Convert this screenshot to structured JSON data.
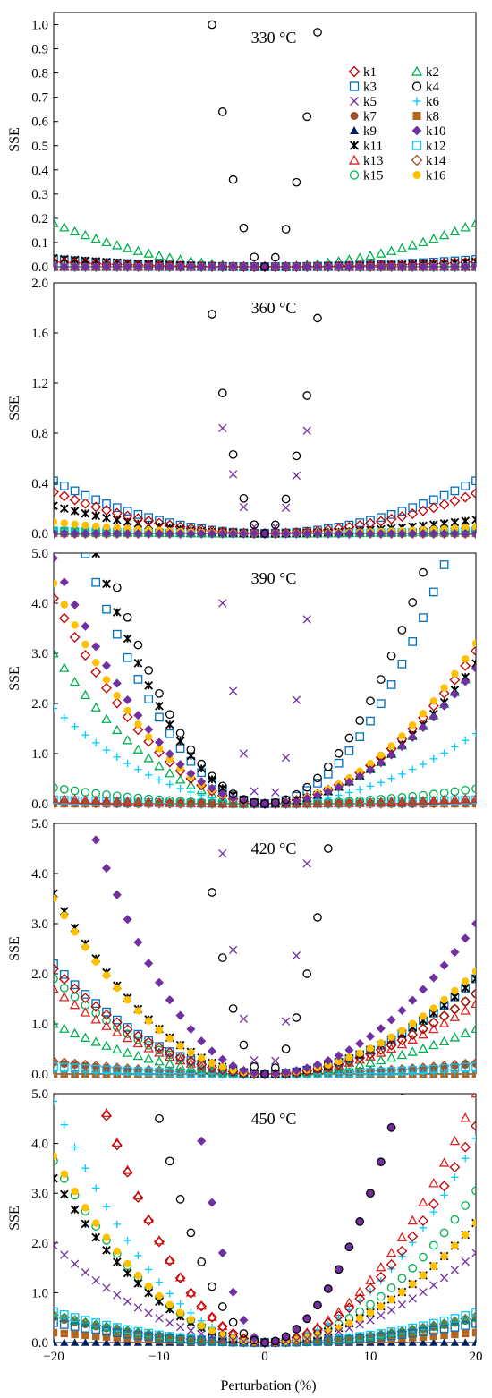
{
  "figure": {
    "xlabel": "Perturbation (%)",
    "xticks": [
      "−20",
      "−10",
      "0",
      "10",
      "20"
    ],
    "xlim": [
      -20,
      20
    ],
    "ylabel": "SSE"
  },
  "legend": {
    "placement": "top-right of first panel, two columns",
    "items": [
      {
        "key": "k1",
        "label": "k1",
        "marker": "diamond-open",
        "color": "#c00000"
      },
      {
        "key": "k2",
        "label": "k2",
        "marker": "triangle-open",
        "color": "#00b050"
      },
      {
        "key": "k3",
        "label": "k3",
        "marker": "square-open",
        "color": "#0070c0"
      },
      {
        "key": "k4",
        "label": "k4",
        "marker": "circle-open",
        "color": "#000000"
      },
      {
        "key": "k5",
        "label": "k5",
        "marker": "x",
        "color": "#7030a0"
      },
      {
        "key": "k6",
        "label": "k6",
        "marker": "plus",
        "color": "#00ccff"
      },
      {
        "key": "k7",
        "label": "k7",
        "marker": "circle-filled",
        "color": "#a0522d"
      },
      {
        "key": "k8",
        "label": "k8",
        "marker": "square-filled",
        "color": "#b5651d"
      },
      {
        "key": "k9",
        "label": "k9",
        "marker": "triangle-filled",
        "color": "#002060"
      },
      {
        "key": "k10",
        "label": "k10",
        "marker": "diamond-filled",
        "color": "#7030a0"
      },
      {
        "key": "k11",
        "label": "k11",
        "marker": "star",
        "color": "#000000"
      },
      {
        "key": "k12",
        "label": "k12",
        "marker": "square-open",
        "color": "#00ccff"
      },
      {
        "key": "k13",
        "label": "k13",
        "marker": "triangle-open",
        "color": "#e02020"
      },
      {
        "key": "k14",
        "label": "k14",
        "marker": "diamond-open",
        "color": "#a0522d"
      },
      {
        "key": "k15",
        "label": "k15",
        "marker": "circle-open",
        "color": "#00b050"
      },
      {
        "key": "k16",
        "label": "k16",
        "marker": "circle-filled",
        "color": "#ffc000"
      }
    ]
  },
  "chart_data": [
    {
      "type": "scatter",
      "title": "330 °C",
      "xlabel": "",
      "ylabel": "SSE",
      "ylim": [
        0,
        1.05
      ],
      "yticks": [
        "0.0",
        "0.1",
        "0.2",
        "0.3",
        "0.4",
        "0.5",
        "0.6",
        "0.7",
        "0.8",
        "0.9",
        "1.0"
      ],
      "ytick_values": [
        0,
        0.1,
        0.2,
        0.3,
        0.4,
        0.5,
        0.6,
        0.7,
        0.8,
        0.9,
        1.0
      ],
      "x": [
        -20,
        -19,
        -18,
        -17,
        -16,
        -15,
        -14,
        -13,
        -12,
        -11,
        -10,
        -9,
        -8,
        -7,
        -6,
        -5,
        -4,
        -3,
        -2,
        -1,
        0,
        1,
        2,
        3,
        4,
        5,
        6,
        7,
        8,
        9,
        10,
        11,
        12,
        13,
        14,
        15,
        16,
        17,
        18,
        19,
        20
      ],
      "series": [
        {
          "name": "k1",
          "a": 0.02,
          "b": 0.02,
          "exp": 2
        },
        {
          "name": "k2",
          "a": 0.18,
          "b": 0.18,
          "exp": 2
        },
        {
          "name": "k3",
          "a": 0.03,
          "b": 0.03,
          "exp": 2
        },
        {
          "name": "k4",
          "a": 16.0,
          "b": 15.5,
          "exp": 2,
          "xmin": -8,
          "xmax": 8
        },
        {
          "name": "k5",
          "a": 0.0,
          "b": 0.0,
          "exp": 2
        },
        {
          "name": "k6",
          "a": 0.01,
          "b": 0.01,
          "exp": 2
        },
        {
          "name": "k7",
          "a": 0.0,
          "b": 0.0,
          "exp": 2
        },
        {
          "name": "k8",
          "a": 0.0,
          "b": 0.0,
          "exp": 2
        },
        {
          "name": "k9",
          "a": 0.0,
          "b": 0.0,
          "exp": 2
        },
        {
          "name": "k10",
          "a": 0.0,
          "b": 0.0,
          "exp": 2
        },
        {
          "name": "k11",
          "a": 0.035,
          "b": 0.02,
          "exp": 2
        },
        {
          "name": "k12",
          "a": 0.0,
          "b": 0.0,
          "exp": 2
        },
        {
          "name": "k13",
          "a": 0.0,
          "b": 0.0,
          "exp": 2
        },
        {
          "name": "k14",
          "a": 0.0,
          "b": 0.0,
          "exp": 2
        },
        {
          "name": "k15",
          "a": 0.0,
          "b": 0.0,
          "exp": 2
        },
        {
          "name": "k16",
          "a": 0.0,
          "b": 0.0,
          "exp": 2
        }
      ]
    },
    {
      "type": "scatter",
      "title": "360 °C",
      "xlabel": "",
      "ylabel": "SSE",
      "ylim": [
        0,
        2.0
      ],
      "yticks": [
        "0.0",
        "0.4",
        "0.8",
        "1.2",
        "1.6",
        "2.0"
      ],
      "ytick_values": [
        0,
        0.4,
        0.8,
        1.2,
        1.6,
        2.0
      ],
      "x": [
        -20,
        -19,
        -18,
        -17,
        -16,
        -15,
        -14,
        -13,
        -12,
        -11,
        -10,
        -9,
        -8,
        -7,
        -6,
        -5,
        -4,
        -3,
        -2,
        -1,
        0,
        1,
        2,
        3,
        4,
        5,
        6,
        7,
        8,
        9,
        10,
        11,
        12,
        13,
        14,
        15,
        16,
        17,
        18,
        19,
        20
      ],
      "series": [
        {
          "name": "k1",
          "a": 0.33,
          "b": 0.32,
          "exp": 2
        },
        {
          "name": "k2",
          "a": 0.02,
          "b": 0.02,
          "exp": 2
        },
        {
          "name": "k3",
          "a": 0.42,
          "b": 0.42,
          "exp": 2
        },
        {
          "name": "k4",
          "a": 28.0,
          "b": 27.5,
          "exp": 2,
          "xmin": -7,
          "xmax": 7
        },
        {
          "name": "k5",
          "a": 21.0,
          "b": 20.5,
          "exp": 2,
          "xmin": -4,
          "xmax": 4
        },
        {
          "name": "k6",
          "a": 0.03,
          "b": 0.03,
          "exp": 2
        },
        {
          "name": "k7",
          "a": 0.0,
          "b": 0.0,
          "exp": 2
        },
        {
          "name": "k8",
          "a": 0.0,
          "b": 0.0,
          "exp": 2
        },
        {
          "name": "k9",
          "a": 0.0,
          "b": 0.0,
          "exp": 2
        },
        {
          "name": "k10",
          "a": 0.0,
          "b": 0.0,
          "exp": 2
        },
        {
          "name": "k11",
          "a": 0.22,
          "b": 0.11,
          "exp": 2
        },
        {
          "name": "k12",
          "a": 0.02,
          "b": 0.02,
          "exp": 2
        },
        {
          "name": "k13",
          "a": 0.02,
          "b": 0.02,
          "exp": 2
        },
        {
          "name": "k14",
          "a": 0.0,
          "b": 0.0,
          "exp": 2
        },
        {
          "name": "k15",
          "a": 0.02,
          "b": 0.02,
          "exp": 2
        },
        {
          "name": "k16",
          "a": 0.09,
          "b": 0.05,
          "exp": 2
        }
      ]
    },
    {
      "type": "scatter",
      "title": "390 °C",
      "xlabel": "",
      "ylabel": "SSE",
      "ylim": [
        0,
        5.0
      ],
      "yticks": [
        "0.0",
        "1.0",
        "2.0",
        "3.0",
        "4.0",
        "5.0"
      ],
      "ytick_values": [
        0,
        1,
        2,
        3,
        4,
        5
      ],
      "x": [
        -20,
        -19,
        -18,
        -17,
        -16,
        -15,
        -14,
        -13,
        -12,
        -11,
        -10,
        -9,
        -8,
        -7,
        -6,
        -5,
        -4,
        -3,
        -2,
        -1,
        0,
        1,
        2,
        3,
        4,
        5,
        6,
        7,
        8,
        9,
        10,
        11,
        12,
        13,
        14,
        15,
        16,
        17,
        18,
        19,
        20
      ],
      "series": [
        {
          "name": "k1",
          "a": 4.1,
          "b": 3.05,
          "exp": 2
        },
        {
          "name": "k2",
          "a": 3.0,
          "b": 2.75,
          "exp": 2
        },
        {
          "name": "k3",
          "a": 6.9,
          "b": 6.6,
          "exp": 2,
          "xmin": -17,
          "xmax": 19
        },
        {
          "name": "k4",
          "a": 8.8,
          "b": 8.2,
          "exp": 2,
          "xmin": -14,
          "xmax": 16
        },
        {
          "name": "k5",
          "a": 100,
          "b": 92,
          "exp": 2,
          "xmin": -5,
          "xmax": 5
        },
        {
          "name": "k6",
          "a": 1.9,
          "b": 1.4,
          "exp": 2
        },
        {
          "name": "k7",
          "a": 0.02,
          "b": 0.02,
          "exp": 2
        },
        {
          "name": "k8",
          "a": 0.0,
          "b": 0.0,
          "exp": 2
        },
        {
          "name": "k9",
          "a": 0.0,
          "b": 0.0,
          "exp": 2
        },
        {
          "name": "k10",
          "a": 4.9,
          "b": 2.7,
          "exp": 2,
          "xmin": -20,
          "xmax": 20
        },
        {
          "name": "k11",
          "a": 7.8,
          "b": 2.8,
          "exp": 2,
          "xmin": -17,
          "xmax": 20
        },
        {
          "name": "k12",
          "a": 0.08,
          "b": 0.08,
          "exp": 2
        },
        {
          "name": "k13",
          "a": 0.1,
          "b": 0.1,
          "exp": 2
        },
        {
          "name": "k14",
          "a": 0.02,
          "b": 0.02,
          "exp": 2
        },
        {
          "name": "k15",
          "a": 0.32,
          "b": 0.3,
          "exp": 2
        },
        {
          "name": "k16",
          "a": 4.4,
          "b": 3.2,
          "exp": 2
        }
      ]
    },
    {
      "type": "scatter",
      "title": "420 °C",
      "xlabel": "",
      "ylabel": "SSE",
      "ylim": [
        0,
        5.0
      ],
      "yticks": [
        "0.0",
        "1.0",
        "2.0",
        "3.0",
        "4.0",
        "5.0"
      ],
      "ytick_values": [
        0,
        1,
        2,
        3,
        4,
        5
      ],
      "x": [
        -20,
        -19,
        -18,
        -17,
        -16,
        -15,
        -14,
        -13,
        -12,
        -11,
        -10,
        -9,
        -8,
        -7,
        -6,
        -5,
        -4,
        -3,
        -2,
        -1,
        0,
        1,
        2,
        3,
        4,
        5,
        6,
        7,
        8,
        9,
        10,
        11,
        12,
        13,
        14,
        15,
        16,
        17,
        18,
        19,
        20
      ],
      "series": [
        {
          "name": "k1",
          "a": 2.1,
          "b": 1.6,
          "exp": 2
        },
        {
          "name": "k2",
          "a": 1.0,
          "b": 0.9,
          "exp": 2
        },
        {
          "name": "k3",
          "a": 2.2,
          "b": 1.9,
          "exp": 2
        },
        {
          "name": "k4",
          "a": 58,
          "b": 50,
          "exp": 2,
          "xmin": -7,
          "xmax": 8
        },
        {
          "name": "k5",
          "a": 110,
          "b": 105,
          "exp": 2,
          "xmin": -6,
          "xmax": 6
        },
        {
          "name": "k6",
          "a": 0.05,
          "b": 0.05,
          "exp": 2
        },
        {
          "name": "k7",
          "a": 0.22,
          "b": 0.2,
          "exp": 2
        },
        {
          "name": "k8",
          "a": 0.0,
          "b": 0.0,
          "exp": 2
        },
        {
          "name": "k9",
          "a": 0.0,
          "b": 0.0,
          "exp": 2
        },
        {
          "name": "k10",
          "a": 7.3,
          "b": 3.0,
          "exp": 2,
          "xmin": -17,
          "xmax": 20
        },
        {
          "name": "k11",
          "a": 3.6,
          "b": 1.9,
          "exp": 2
        },
        {
          "name": "k12",
          "a": 0.15,
          "b": 0.15,
          "exp": 2
        },
        {
          "name": "k13",
          "a": 1.7,
          "b": 1.4,
          "exp": 2
        },
        {
          "name": "k14",
          "a": 0.25,
          "b": 0.22,
          "exp": 2
        },
        {
          "name": "k15",
          "a": 1.9,
          "b": 1.6,
          "exp": 2
        },
        {
          "name": "k16",
          "a": 3.5,
          "b": 2.05,
          "exp": 2
        }
      ]
    },
    {
      "type": "scatter",
      "title": "450 °C",
      "xlabel": "Perturbation (%)",
      "ylabel": "SSE",
      "ylim": [
        0,
        5.0
      ],
      "yticks": [
        "0.0",
        "1.0",
        "2.0",
        "3.0",
        "4.0",
        "5.0"
      ],
      "ytick_values": [
        0,
        1,
        2,
        3,
        4,
        5
      ],
      "x": [
        -20,
        -19,
        -18,
        -17,
        -16,
        -15,
        -14,
        -13,
        -12,
        -11,
        -10,
        -9,
        -8,
        -7,
        -6,
        -5,
        -4,
        -3,
        -2,
        -1,
        0,
        1,
        2,
        3,
        4,
        5,
        6,
        7,
        8,
        9,
        10,
        11,
        12,
        13,
        14,
        15,
        16,
        17,
        18,
        19,
        20
      ],
      "series": [
        {
          "name": "k1",
          "a": 8.1,
          "b": 4.35,
          "exp": 2,
          "xmin": -17,
          "xmax": 20
        },
        {
          "name": "k2",
          "a": 0.55,
          "b": 0.5,
          "exp": 2
        },
        {
          "name": "k3",
          "a": 0.4,
          "b": 0.38,
          "exp": 2
        },
        {
          "name": "k4",
          "a": 18,
          "b": 12,
          "exp": 2,
          "xmin": -14,
          "xmax": 14
        },
        {
          "name": "k5",
          "a": 1.95,
          "b": 1.8,
          "exp": 2
        },
        {
          "name": "k6",
          "a": 4.85,
          "b": 4.1,
          "exp": 2
        },
        {
          "name": "k7",
          "a": 0.5,
          "b": 0.48,
          "exp": 2
        },
        {
          "name": "k8",
          "a": 0.2,
          "b": 0.2,
          "exp": 2
        },
        {
          "name": "k9",
          "a": 0.0,
          "b": 0.0,
          "exp": 2
        },
        {
          "name": "k10",
          "a": 45,
          "b": 12,
          "exp": 2,
          "xmin": -12,
          "xmax": 14
        },
        {
          "name": "k11",
          "a": 3.3,
          "b": 2.4,
          "exp": 2
        },
        {
          "name": "k12",
          "a": 0.62,
          "b": 0.6,
          "exp": 2
        },
        {
          "name": "k13",
          "a": 8.2,
          "b": 5.0,
          "exp": 2,
          "xmin": -17,
          "xmax": 20
        },
        {
          "name": "k14",
          "a": 0.55,
          "b": 0.52,
          "exp": 2
        },
        {
          "name": "k15",
          "a": 3.65,
          "b": 3.05,
          "exp": 2
        },
        {
          "name": "k16",
          "a": 3.75,
          "b": 2.4,
          "exp": 2
        }
      ]
    }
  ]
}
